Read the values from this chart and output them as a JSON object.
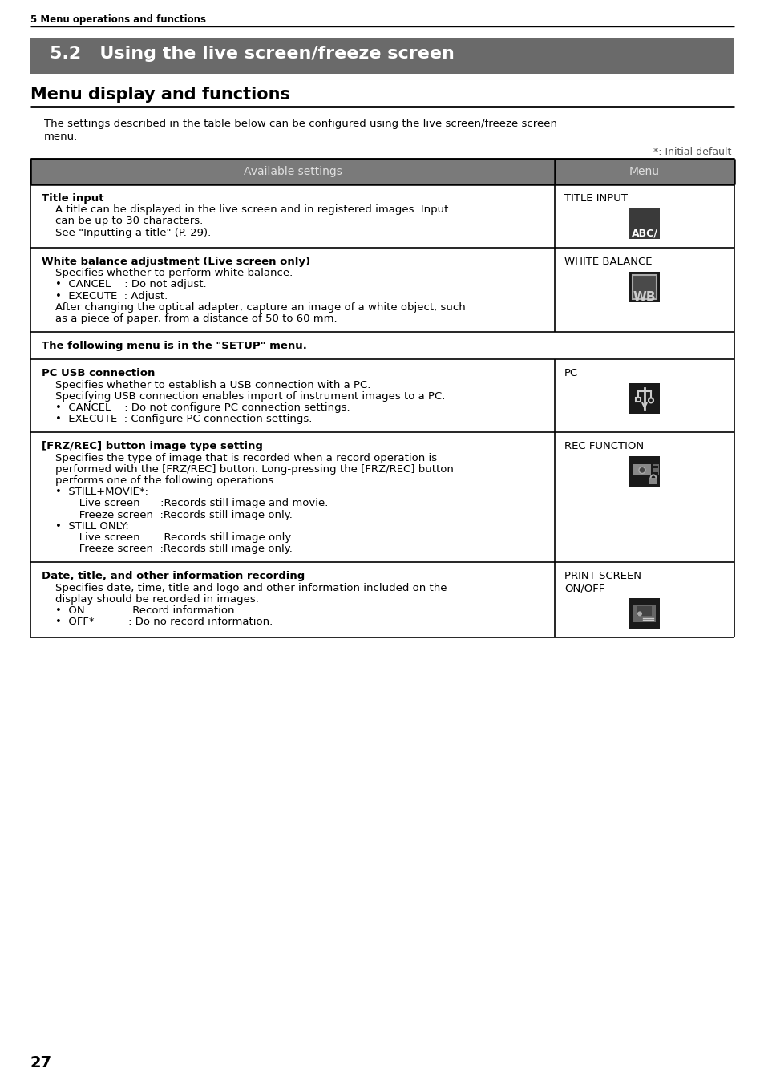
{
  "page_header": "5 Menu operations and functions",
  "section_title": "5.2   Using the live screen/freeze screen",
  "section_subtitle": "Menu display and functions",
  "intro_line1": "The settings described in the table below can be configured using the live screen/freeze screen",
  "intro_line2": "menu.",
  "initial_default_note": "*: Initial default",
  "col_header_left": "Available settings",
  "col_header_right": "Menu",
  "header_bg": "#7a7a7a",
  "header_text_color": "#e0e0e0",
  "section_title_bg": "#6a6a6a",
  "section_title_text": "#ffffff",
  "table_border_color": "#000000",
  "bg_color": "#ffffff",
  "text_color": "#000000",
  "page_number": "27",
  "rows": [
    {
      "left_lines": [
        {
          "text": "Title input",
          "bold": true
        },
        {
          "text": "    A title can be displayed in the live screen and in registered images. Input",
          "bold": false
        },
        {
          "text": "    can be up to 30 characters.",
          "bold": false
        },
        {
          "text": "    See \"Inputting a title\" (P. 29).",
          "bold": false
        }
      ],
      "right_label": "TITLE INPUT",
      "icon_type": "ABC",
      "full_width": false
    },
    {
      "left_lines": [
        {
          "text": "White balance adjustment (Live screen only)",
          "bold": true
        },
        {
          "text": "    Specifies whether to perform white balance.",
          "bold": false
        },
        {
          "text": "    •  CANCEL    : Do not adjust.",
          "bold": false
        },
        {
          "text": "    •  EXECUTE  : Adjust.",
          "bold": false
        },
        {
          "text": "    After changing the optical adapter, capture an image of a white object, such",
          "bold": false
        },
        {
          "text": "    as a piece of paper, from a distance of 50 to 60 mm.",
          "bold": false
        }
      ],
      "right_label": "WHITE BALANCE",
      "icon_type": "WB",
      "full_width": false
    },
    {
      "left_lines": [
        {
          "text": "The following menu is in the \"SETUP\" menu.",
          "bold": true
        }
      ],
      "right_label": "",
      "icon_type": "",
      "full_width": true
    },
    {
      "left_lines": [
        {
          "text": "PC USB connection",
          "bold": true
        },
        {
          "text": "    Specifies whether to establish a USB connection with a PC.",
          "bold": false
        },
        {
          "text": "    Specifying USB connection enables import of instrument images to a PC.",
          "bold": false
        },
        {
          "text": "    •  CANCEL    : Do not configure PC connection settings.",
          "bold": false
        },
        {
          "text": "    •  EXECUTE  : Configure PC connection settings.",
          "bold": false
        }
      ],
      "right_label": "PC",
      "icon_type": "USB",
      "full_width": false
    },
    {
      "left_lines": [
        {
          "text": "[FRZ/REC] button image type setting",
          "bold": true
        },
        {
          "text": "    Specifies the type of image that is recorded when a record operation is",
          "bold": false
        },
        {
          "text": "    performed with the [FRZ/REC] button. Long-pressing the [FRZ/REC] button",
          "bold": false
        },
        {
          "text": "    performs one of the following operations.",
          "bold": false
        },
        {
          "text": "    •  STILL+MOVIE*:",
          "bold": false
        },
        {
          "text": "           Live screen      :Records still image and movie.",
          "bold": false
        },
        {
          "text": "           Freeze screen  :Records still image only.",
          "bold": false
        },
        {
          "text": "    •  STILL ONLY:",
          "bold": false
        },
        {
          "text": "           Live screen      :Records still image only.",
          "bold": false
        },
        {
          "text": "           Freeze screen  :Records still image only.",
          "bold": false
        }
      ],
      "right_label": "REC FUNCTION",
      "icon_type": "REC",
      "full_width": false
    },
    {
      "left_lines": [
        {
          "text": "Date, title, and other information recording",
          "bold": true
        },
        {
          "text": "    Specifies date, time, title and logo and other information included on the",
          "bold": false
        },
        {
          "text": "    display should be recorded in images.",
          "bold": false
        },
        {
          "text": "    •  ON            : Record information.",
          "bold": false
        },
        {
          "text": "    •  OFF*          : Do no record information.",
          "bold": false
        }
      ],
      "right_label": "PRINT SCREEN\nON/OFF",
      "icon_type": "PRINT",
      "full_width": false
    }
  ]
}
